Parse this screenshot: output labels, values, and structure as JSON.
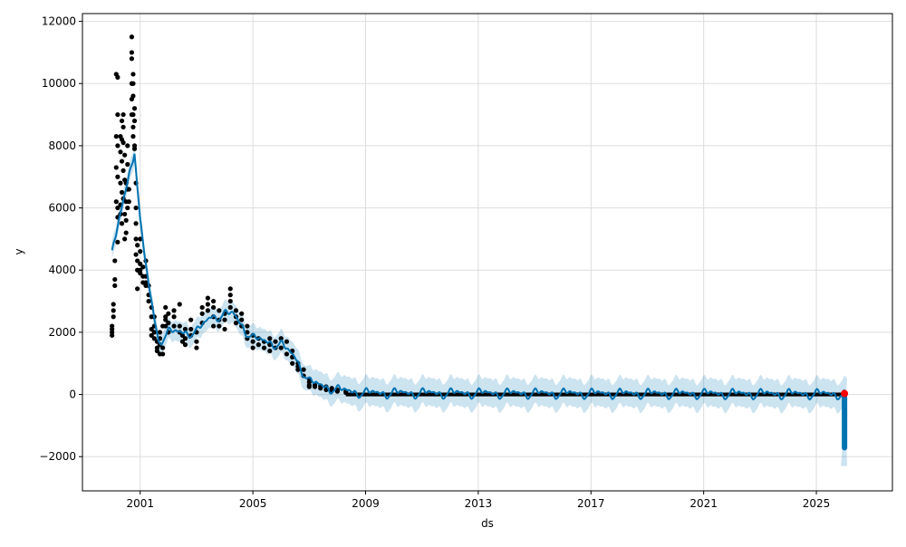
{
  "chart_data": {
    "type": "line",
    "title": "",
    "xlabel": "ds",
    "ylabel": "y",
    "xlim": [
      1998.95,
      2027.7
    ],
    "ylim": [
      -3100,
      12250
    ],
    "grid": true,
    "x_ticks": [
      {
        "value": 2001,
        "label": "2001"
      },
      {
        "value": 2005,
        "label": "2005"
      },
      {
        "value": 2009,
        "label": "2009"
      },
      {
        "value": 2013,
        "label": "2013"
      },
      {
        "value": 2017,
        "label": "2017"
      },
      {
        "value": 2021,
        "label": "2021"
      },
      {
        "value": 2025,
        "label": "2025"
      }
    ],
    "y_ticks": [
      {
        "value": -2000,
        "label": "−2000"
      },
      {
        "value": 0,
        "label": "0"
      },
      {
        "value": 2000,
        "label": "2000"
      },
      {
        "value": 4000,
        "label": "4000"
      },
      {
        "value": 6000,
        "label": "6000"
      },
      {
        "value": 8000,
        "label": "8000"
      },
      {
        "value": 10000,
        "label": "10000"
      },
      {
        "value": 12000,
        "label": "12000"
      }
    ],
    "colors": {
      "observed": "#000000",
      "forecast": "#0072B2",
      "interval": "#0072B2",
      "last_point": "#ff0000",
      "grid": "#dddddd"
    },
    "observed": [
      [
        2000.0,
        [
          1900,
          2000,
          2100,
          2200
        ]
      ],
      [
        2000.05,
        [
          2500,
          2700,
          2900
        ]
      ],
      [
        2000.1,
        [
          3500,
          3700,
          4300
        ]
      ],
      [
        2000.15,
        [
          6200,
          7300,
          8300,
          10300
        ]
      ],
      [
        2000.2,
        [
          10200,
          9000,
          8000,
          7000,
          6000,
          5700,
          4900
        ]
      ],
      [
        2000.3,
        [
          8300,
          7800,
          6800,
          6100,
          5800
        ]
      ],
      [
        2000.35,
        [
          8800,
          8200,
          7500,
          6500,
          5500
        ]
      ],
      [
        2000.4,
        [
          9000,
          8600,
          8100,
          7200,
          6300
        ]
      ],
      [
        2000.45,
        [
          7700,
          6900,
          5800,
          5000
        ]
      ],
      [
        2000.5,
        [
          6800,
          6200,
          5600,
          5200
        ]
      ],
      [
        2000.55,
        [
          8000,
          7400,
          6600,
          6000
        ]
      ],
      [
        2000.6,
        [
          6600,
          6200
        ]
      ],
      [
        2000.7,
        [
          9000,
          9500,
          10000,
          10800,
          11500,
          11000
        ]
      ],
      [
        2000.75,
        [
          10300,
          10000,
          9600,
          9000,
          8600,
          8300
        ]
      ],
      [
        2000.8,
        [
          9200,
          8800,
          8000,
          7900
        ]
      ],
      [
        2000.85,
        [
          6800,
          6000,
          5500,
          5000,
          4500
        ]
      ],
      [
        2000.9,
        [
          4000,
          3400,
          4300,
          4800
        ]
      ],
      [
        2001.0,
        [
          4200,
          4600,
          5000,
          3900,
          4000
        ]
      ],
      [
        2001.1,
        [
          4100,
          3800,
          3600
        ]
      ],
      [
        2001.2,
        [
          3800,
          3500,
          3600,
          4300
        ]
      ],
      [
        2001.3,
        [
          3500,
          3200,
          3000
        ]
      ],
      [
        2001.4,
        [
          2800,
          2500,
          2100,
          1900
        ]
      ],
      [
        2001.5,
        [
          2200,
          2000,
          1800,
          2500
        ]
      ],
      [
        2001.6,
        [
          1700,
          1500,
          1400
        ]
      ],
      [
        2001.7,
        [
          1300,
          1600,
          1800,
          2000
        ]
      ],
      [
        2001.8,
        [
          1300,
          1500,
          2200
        ]
      ],
      [
        2001.9,
        [
          2800,
          2500,
          2200,
          2400
        ]
      ],
      [
        2002.0,
        [
          2600,
          2300,
          2000
        ]
      ],
      [
        2002.2,
        [
          2200,
          2500,
          2700
        ]
      ],
      [
        2002.4,
        [
          2200,
          2000,
          2900
        ]
      ],
      [
        2002.5,
        [
          1900,
          1700
        ]
      ],
      [
        2002.6,
        [
          2100,
          1800,
          1600
        ]
      ],
      [
        2002.8,
        [
          2400,
          2100,
          1900
        ]
      ],
      [
        2003.0,
        [
          1700,
          1500,
          2000
        ]
      ],
      [
        2003.2,
        [
          2300,
          2600,
          2800
        ]
      ],
      [
        2003.4,
        [
          2900,
          3100,
          2700
        ]
      ],
      [
        2003.6,
        [
          2500,
          2200,
          2800,
          3000
        ]
      ],
      [
        2003.8,
        [
          2700,
          2400,
          2200
        ]
      ],
      [
        2004.0,
        [
          2400,
          2600,
          2100
        ]
      ],
      [
        2004.2,
        [
          2800,
          3000,
          3400,
          3200
        ]
      ],
      [
        2004.4,
        [
          2500,
          2700,
          2300
        ]
      ],
      [
        2004.6,
        [
          2600,
          2400,
          2200
        ]
      ],
      [
        2004.8,
        [
          2200,
          2000,
          1800
        ]
      ],
      [
        2005.0,
        [
          1700,
          1900,
          1500
        ]
      ],
      [
        2005.2,
        [
          1800,
          1600
        ]
      ],
      [
        2005.4,
        [
          1700,
          1500
        ]
      ],
      [
        2005.6,
        [
          1800,
          1600,
          1400
        ]
      ],
      [
        2005.8,
        [
          1700,
          1500
        ]
      ],
      [
        2006.0,
        [
          1800,
          1500
        ]
      ],
      [
        2006.2,
        [
          1700,
          1300
        ]
      ],
      [
        2006.4,
        [
          1200,
          1400,
          1000
        ]
      ],
      [
        2006.6,
        [
          1000,
          900,
          800
        ]
      ],
      [
        2006.8,
        [
          800,
          600
        ]
      ],
      [
        2007.0,
        [
          400,
          300,
          500,
          250
        ]
      ],
      [
        2007.2,
        [
          300,
          250
        ]
      ],
      [
        2007.4,
        [
          280,
          200
        ]
      ],
      [
        2007.6,
        [
          250,
          150
        ]
      ],
      [
        2007.8,
        [
          200,
          120
        ]
      ],
      [
        2008.0,
        [
          150,
          100
        ]
      ],
      [
        2008.3,
        [
          100,
          60
        ]
      ]
    ],
    "observed_dense": {
      "from": 2008.3,
      "to": 2026.0,
      "low": -60,
      "high": 60
    },
    "trend": [
      [
        2000.0,
        4500
      ],
      [
        2000.3,
        5800
      ],
      [
        2000.8,
        7900
      ],
      [
        2001.0,
        5500
      ],
      [
        2001.3,
        3500
      ],
      [
        2001.65,
        1700
      ],
      [
        2002.0,
        2000
      ],
      [
        2003.0,
        2000
      ],
      [
        2003.5,
        2500
      ],
      [
        2004.3,
        2600
      ],
      [
        2004.8,
        2000
      ],
      [
        2005.0,
        1800
      ],
      [
        2006.0,
        1600
      ],
      [
        2006.5,
        1200
      ],
      [
        2007.0,
        400
      ],
      [
        2008.0,
        150
      ],
      [
        2009.0,
        50
      ],
      [
        2026.0,
        20
      ]
    ],
    "seasonality": [
      [
        1,
        80,
        0.3
      ],
      [
        2,
        60,
        1.2
      ],
      [
        3,
        50,
        2.0
      ],
      [
        5,
        30,
        0.5
      ]
    ],
    "interval_halfwidth": [
      [
        2000.0,
        300
      ],
      [
        2005.0,
        350
      ],
      [
        2009.0,
        450
      ],
      [
        2026.0,
        450
      ]
    ],
    "forecast_end": {
      "x": 2026.0,
      "yhat_min": -1800,
      "lower_min": -2300,
      "upper_max": 500
    },
    "last_point": [
      2026.0,
      30
    ]
  }
}
